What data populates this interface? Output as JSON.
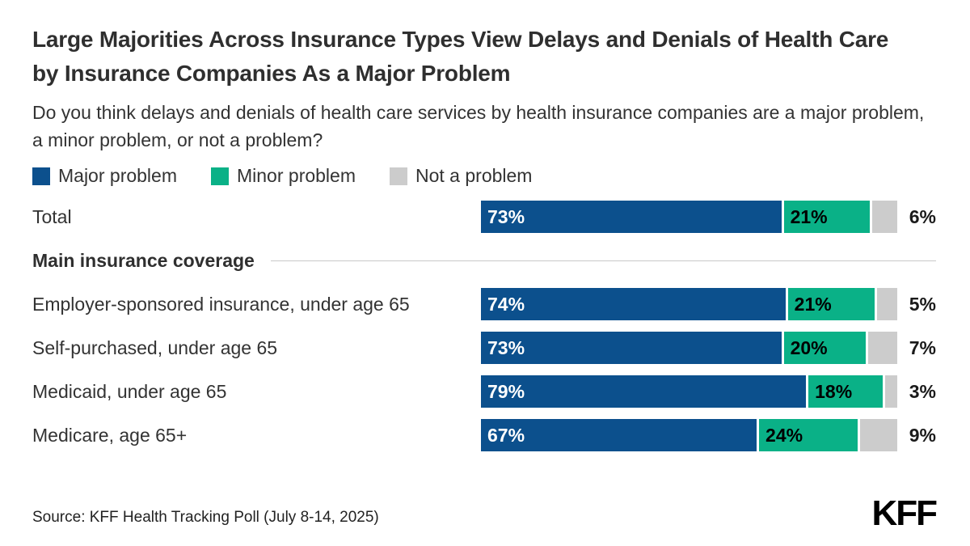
{
  "header": {
    "title": "Large Majorities Across Insurance Types View Delays and Denials of Health Care by Insurance Companies As a Major Problem",
    "subtitle": "Do you think delays and denials of health care services by health insurance companies are a major problem, a minor problem, or not a problem?"
  },
  "colors": {
    "major": "#0c508d",
    "minor": "#0ab187",
    "not_a_problem": "#cccccc",
    "inside_label_on_major": "#ffffff",
    "inside_label_on_minor": "#000000",
    "section_line": "#c9c9c9"
  },
  "chart_data": {
    "type": "bar",
    "stacked": true,
    "orientation": "horizontal",
    "xlim": [
      0,
      100
    ],
    "value_suffix": "%",
    "categories": [
      "Total",
      "Employer-sponsored insurance, under age 65",
      "Self-purchased, under age 65",
      "Medicaid, under age 65",
      "Medicare, age 65+"
    ],
    "section_header": {
      "label": "Main insurance coverage",
      "after_category_index": 0
    },
    "series": [
      {
        "name": "Major problem",
        "color": "#0c508d",
        "label_position": "inside",
        "label_color": "#ffffff",
        "values": [
          73,
          74,
          73,
          79,
          67
        ]
      },
      {
        "name": "Minor problem",
        "color": "#0ab187",
        "label_position": "inside",
        "label_color": "#000000",
        "values": [
          21,
          21,
          20,
          18,
          24
        ]
      },
      {
        "name": "Not a problem",
        "color": "#cccccc",
        "label_position": "outside",
        "label_color": "#1a1a1a",
        "values": [
          6,
          5,
          7,
          3,
          9
        ]
      }
    ],
    "legend_position": "top"
  },
  "footer": {
    "source": "Source: KFF Health Tracking Poll (July 8-14, 2025)",
    "logo": "KFF"
  }
}
